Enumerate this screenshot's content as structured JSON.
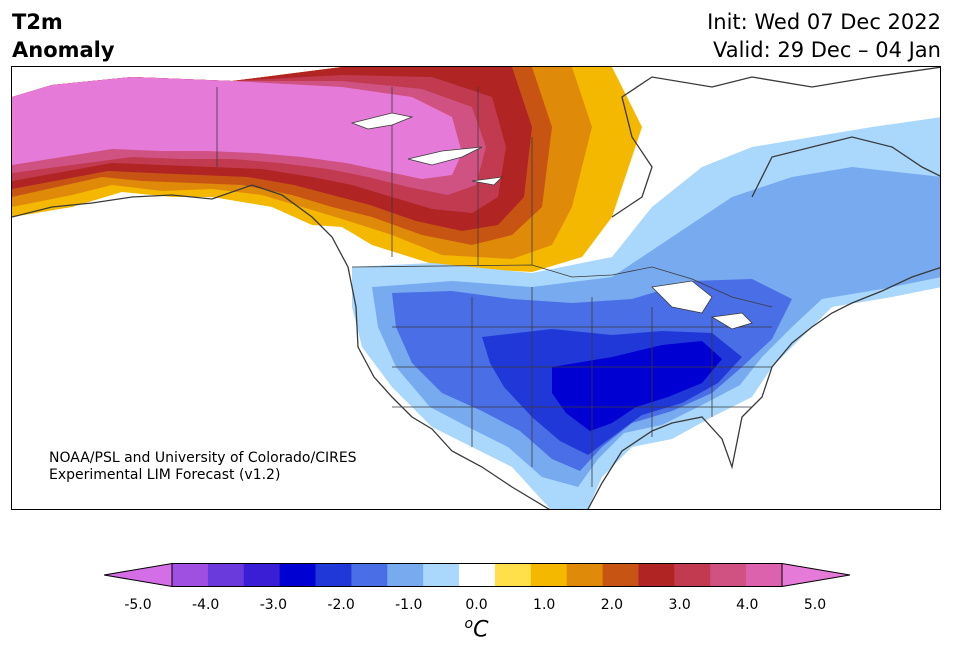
{
  "header": {
    "title_line1": "T2m",
    "title_line2": "Anomaly",
    "init": "Init: Wed 07 Dec 2022",
    "valid": "Valid: 29 Dec – 04 Jan"
  },
  "credit": {
    "line1": "NOAA/PSL and University of Colorado/CIRES",
    "line2": "Experimental LIM Forecast (v1.2)"
  },
  "colorbar": {
    "colors": [
      "#d36ee6",
      "#a050e0",
      "#6a3adc",
      "#3a1ed6",
      "#0000d2",
      "#2038d8",
      "#4a6ee6",
      "#78aaf0",
      "#aad8fc",
      "#ffffff",
      "#ffe04a",
      "#f4b800",
      "#e08a0a",
      "#c85414",
      "#b02424",
      "#c23a50",
      "#d05282",
      "#dc62ae",
      "#e67ad8"
    ],
    "ticks": [
      "-5.0",
      "-4.0",
      "-3.0",
      "-2.0",
      "-1.0",
      "0.0",
      "1.0",
      "2.0",
      "3.0",
      "4.0",
      "5.0"
    ],
    "unit_sup": "o",
    "unit": "C"
  },
  "map": {
    "land_outline": "#3a3a3a",
    "lake_color": "#ffffff"
  }
}
